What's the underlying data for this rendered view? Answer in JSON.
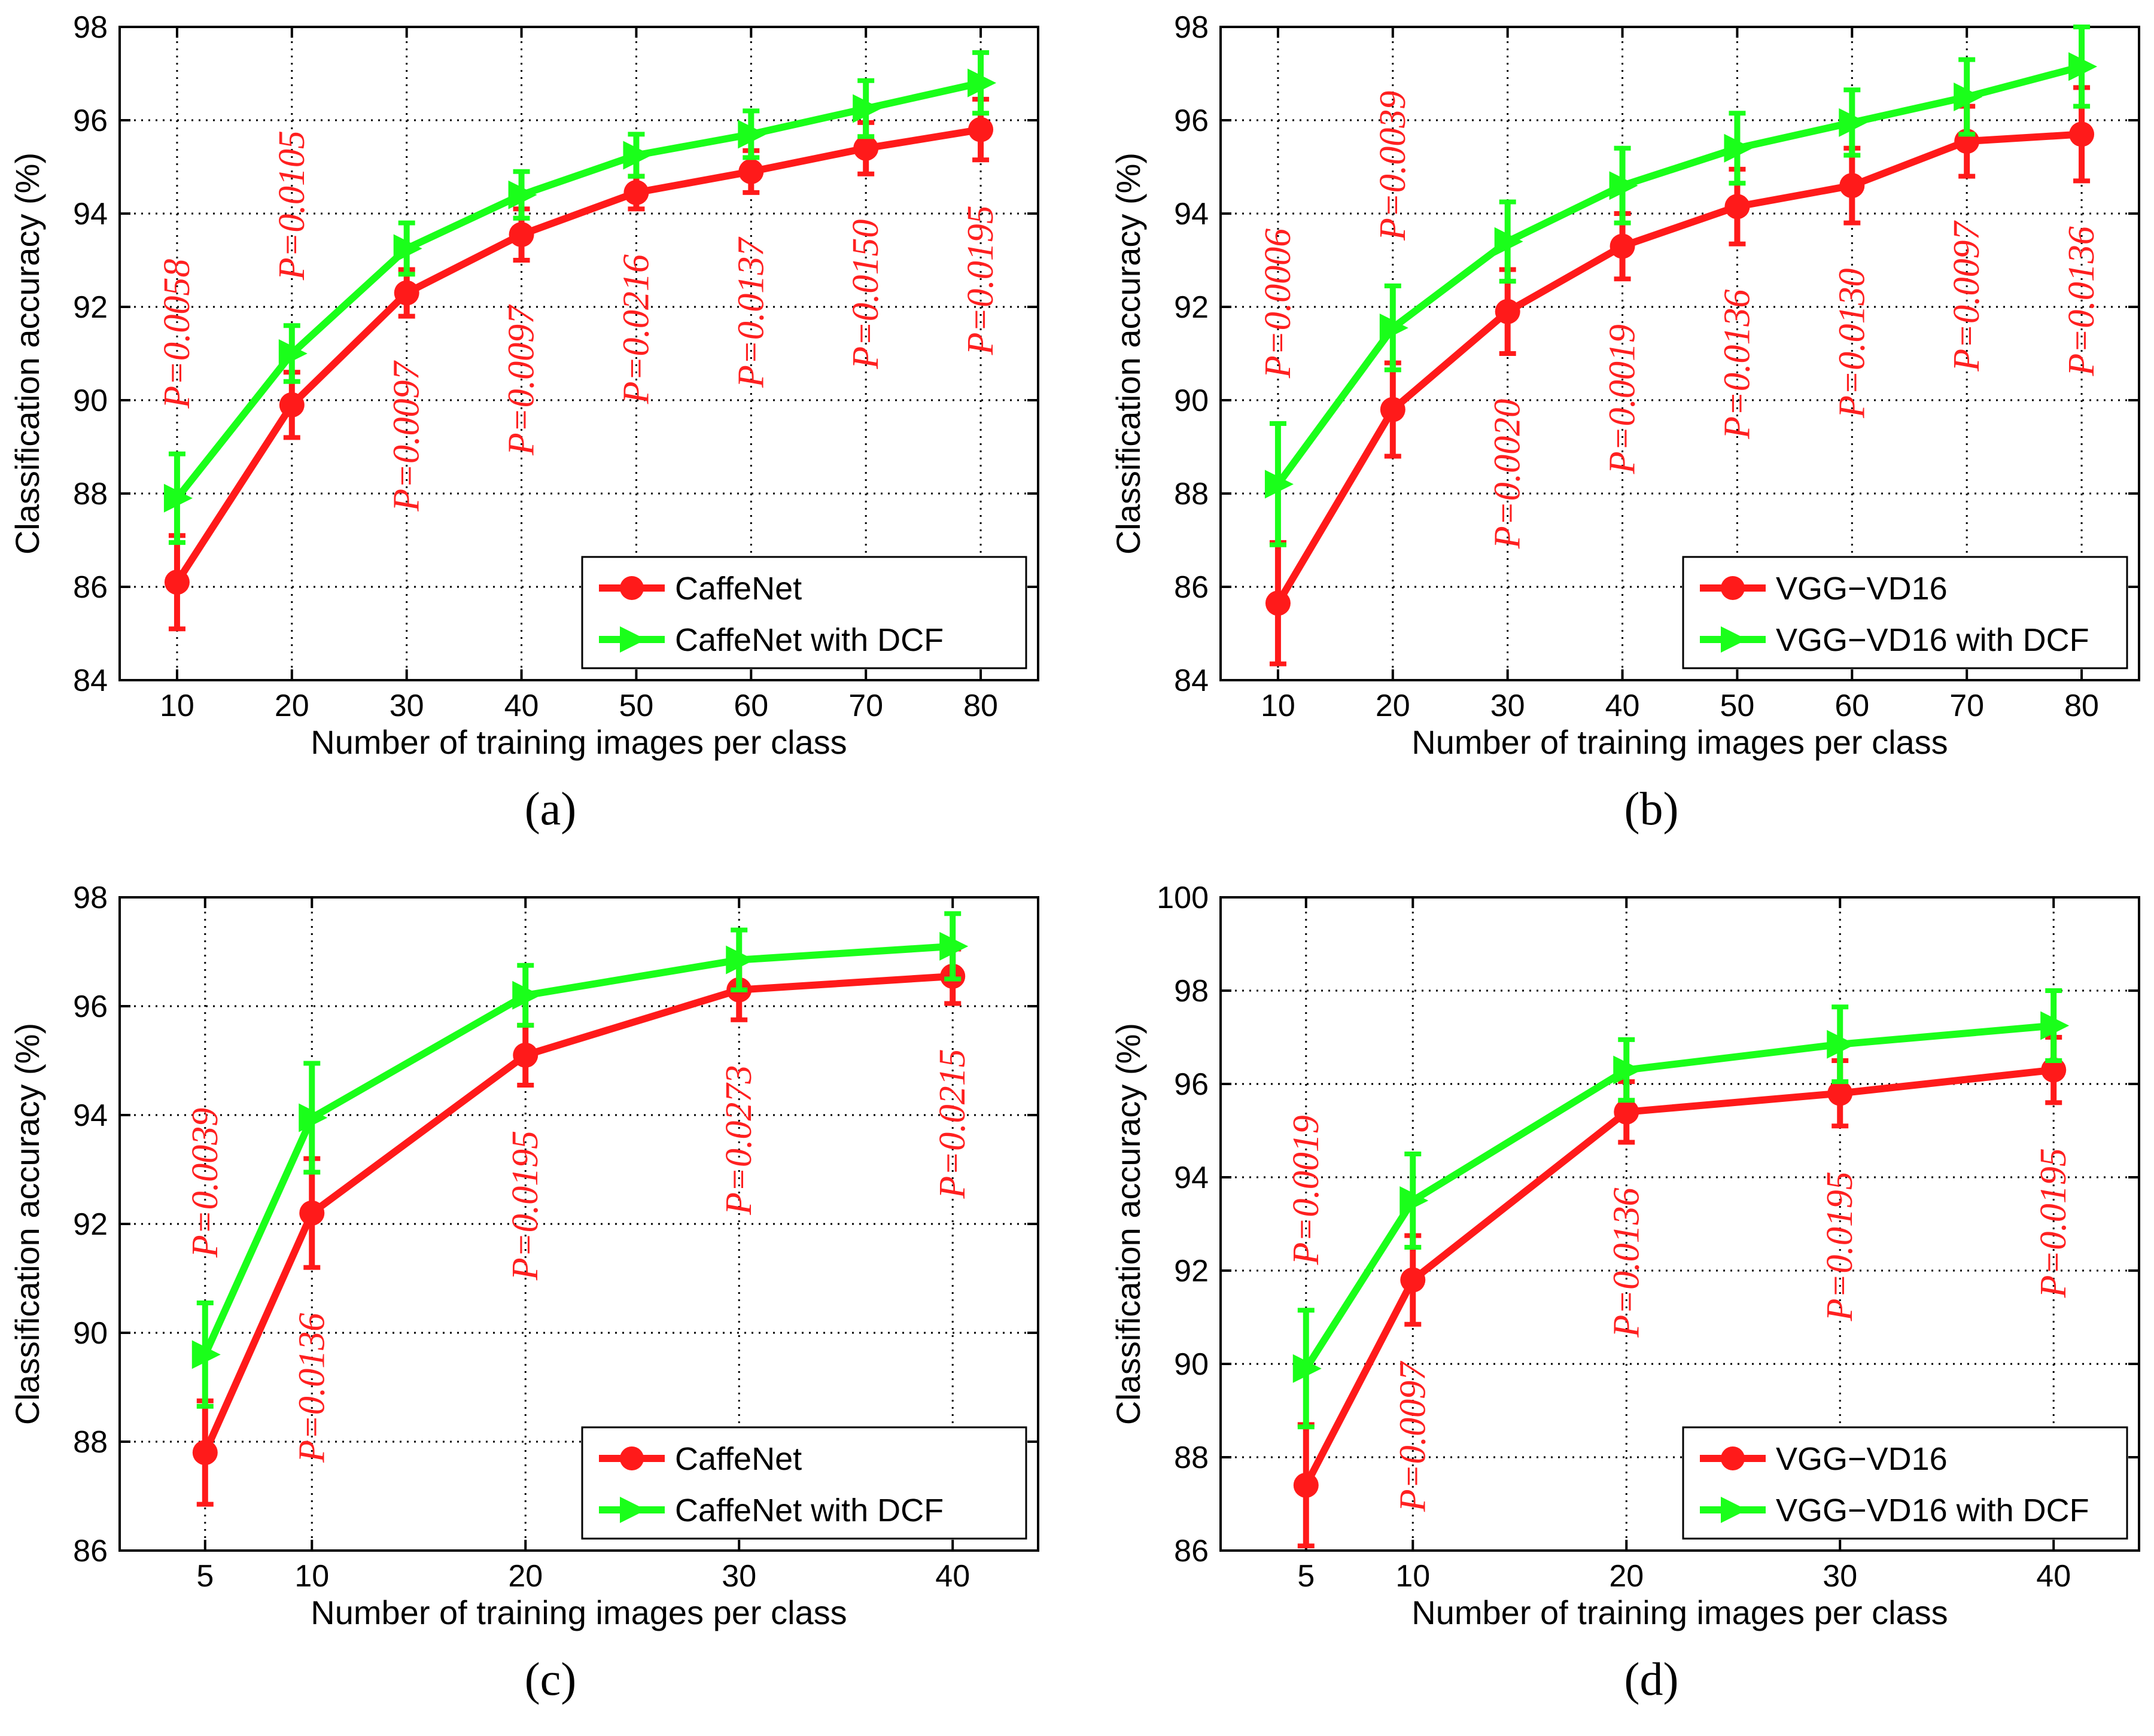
{
  "chart_data": [
    {
      "panel_label": "(a)",
      "type": "line",
      "xlabel": "Number of training images per class",
      "ylabel": "Classification accuracy (%)",
      "x": [
        10,
        20,
        30,
        40,
        50,
        60,
        70,
        80
      ],
      "x_ticks": [
        10,
        20,
        30,
        40,
        50,
        60,
        70,
        80
      ],
      "ylim": [
        84,
        98
      ],
      "y_ticks": [
        84,
        86,
        88,
        90,
        92,
        94,
        96,
        98
      ],
      "grid": "dotted",
      "legend_position": "bottom-right",
      "series": [
        {
          "name": "CaffeNet",
          "color": "#ff1a1a",
          "marker": "circle",
          "values": [
            86.1,
            89.9,
            92.3,
            93.55,
            94.45,
            94.9,
            95.4,
            95.8
          ],
          "errors": [
            1.0,
            0.7,
            0.5,
            0.55,
            0.35,
            0.45,
            0.55,
            0.65
          ]
        },
        {
          "name": "CaffeNet with DCF",
          "color": "#1aff1a",
          "marker": "triangle-right",
          "values": [
            87.9,
            91.0,
            93.25,
            94.4,
            95.25,
            95.7,
            96.25,
            96.8
          ],
          "errors": [
            0.95,
            0.6,
            0.55,
            0.5,
            0.45,
            0.5,
            0.6,
            0.65
          ]
        }
      ],
      "p_labels": [
        "P=0.0058",
        "P=0.0105",
        "P=0.0097",
        "P=0.0097",
        "P=0.0216",
        "P=0.0137",
        "P=0.0150",
        "P=0.0195"
      ],
      "p_label_placement": [
        "above",
        "above",
        "below",
        "below",
        "below",
        "below",
        "below",
        "below"
      ]
    },
    {
      "panel_label": "(b)",
      "type": "line",
      "xlabel": "Number of training images per class",
      "ylabel": "Classification accuracy (%)",
      "x": [
        10,
        20,
        30,
        40,
        50,
        60,
        70,
        80
      ],
      "x_ticks": [
        10,
        20,
        30,
        40,
        50,
        60,
        70,
        80
      ],
      "ylim": [
        84,
        98
      ],
      "y_ticks": [
        84,
        86,
        88,
        90,
        92,
        94,
        96,
        98
      ],
      "grid": "dotted",
      "legend_position": "bottom-right",
      "series": [
        {
          "name": "VGG−VD16",
          "color": "#ff1a1a",
          "marker": "circle",
          "values": [
            85.65,
            89.8,
            91.9,
            93.3,
            94.15,
            94.6,
            95.55,
            95.7
          ],
          "errors": [
            1.3,
            1.0,
            0.9,
            0.7,
            0.8,
            0.8,
            0.75,
            1.0
          ]
        },
        {
          "name": "VGG−VD16 with DCF",
          "color": "#1aff1a",
          "marker": "triangle-right",
          "values": [
            88.2,
            91.55,
            93.4,
            94.6,
            95.4,
            95.95,
            96.5,
            97.15
          ],
          "errors": [
            1.3,
            0.9,
            0.85,
            0.8,
            0.75,
            0.7,
            0.8,
            0.85
          ]
        }
      ],
      "p_labels": [
        "P=0.0006",
        "P=0.0039",
        "P=0.0020",
        "P=0.0019",
        "P=0.0136",
        "P=0.0130",
        "P=0.0097",
        "P=0.0136"
      ],
      "p_label_placement": [
        "above",
        "above",
        "below",
        "below",
        "below",
        "below",
        "below",
        "below"
      ]
    },
    {
      "panel_label": "(c)",
      "type": "line",
      "xlabel": "Number of training images per class",
      "ylabel": "Classification accuracy (%)",
      "x": [
        5,
        10,
        20,
        30,
        40
      ],
      "x_ticks": [
        5,
        10,
        20,
        30,
        40
      ],
      "ylim": [
        86,
        98
      ],
      "y_ticks": [
        86,
        88,
        90,
        92,
        94,
        96,
        98
      ],
      "grid": "dotted",
      "legend_position": "bottom-right",
      "series": [
        {
          "name": "CaffeNet",
          "color": "#ff1a1a",
          "marker": "circle",
          "values": [
            87.8,
            92.2,
            95.1,
            96.3,
            96.55
          ],
          "errors": [
            0.95,
            1.0,
            0.55,
            0.55,
            0.5
          ]
        },
        {
          "name": "CaffeNet with DCF",
          "color": "#1aff1a",
          "marker": "triangle-right",
          "values": [
            89.6,
            93.95,
            96.2,
            96.85,
            97.1
          ],
          "errors": [
            0.95,
            1.0,
            0.55,
            0.55,
            0.6
          ]
        }
      ],
      "p_labels": [
        "P=0.0039",
        "P=0.0136",
        "P=0.0195",
        "P=0.0273",
        "P=0.0215"
      ],
      "p_label_placement": [
        "above",
        "below",
        "below",
        "below",
        "below"
      ]
    },
    {
      "panel_label": "(d)",
      "type": "line",
      "xlabel": "Number of training images per class",
      "ylabel": "Classification accuracy (%)",
      "x": [
        5,
        10,
        20,
        30,
        40
      ],
      "x_ticks": [
        5,
        10,
        20,
        30,
        40
      ],
      "ylim": [
        86,
        100
      ],
      "y_ticks": [
        86,
        88,
        90,
        92,
        94,
        96,
        98,
        100
      ],
      "grid": "dotted",
      "legend_position": "bottom-right",
      "series": [
        {
          "name": "VGG−VD16",
          "color": "#ff1a1a",
          "marker": "circle",
          "values": [
            87.4,
            91.8,
            95.4,
            95.8,
            96.3
          ],
          "errors": [
            1.3,
            0.95,
            0.65,
            0.7,
            0.7
          ]
        },
        {
          "name": "VGG−VD16 with DCF",
          "color": "#1aff1a",
          "marker": "triangle-right",
          "values": [
            89.9,
            93.5,
            96.3,
            96.85,
            97.25
          ],
          "errors": [
            1.25,
            1.0,
            0.65,
            0.8,
            0.75
          ]
        }
      ],
      "p_labels": [
        "P=0.0019",
        "P=0.0097",
        "P=0.0136",
        "P=0.0195",
        "P=0.0195"
      ],
      "p_label_placement": [
        "above",
        "below",
        "below",
        "below",
        "below"
      ]
    }
  ]
}
